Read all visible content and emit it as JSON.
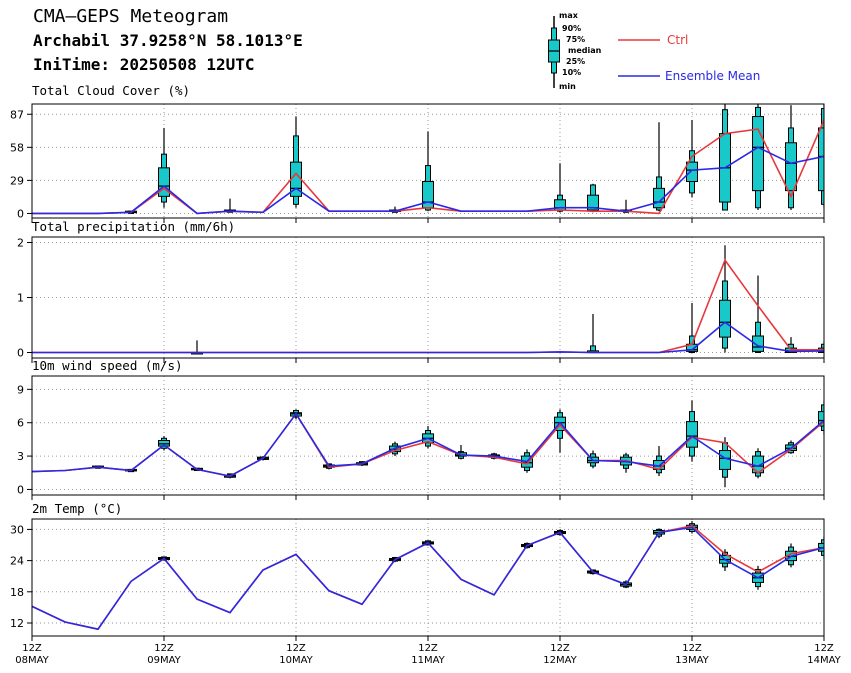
{
  "header": {
    "title": "CMA—GEPS Meteogram",
    "location": "Archabil 37.9258°N 58.1013°E",
    "init_time": "IniTime: 20250508 12UTC"
  },
  "legend": {
    "box_labels": [
      "max",
      "90%",
      "75%",
      "median",
      "25%",
      "10%",
      "min"
    ],
    "lines": [
      {
        "name": "Ctrl",
        "color": "#e8383c"
      },
      {
        "name": "Ensemble Mean",
        "color": "#2a2ae6"
      }
    ]
  },
  "colors": {
    "box_fill": "#19c8c8",
    "ctrl": "#e8383c",
    "mean": "#2a2ae6",
    "grid": "#9a9a9a"
  },
  "chart_data": [
    {
      "type": "box",
      "title": "Total Cloud Cover (%)",
      "ylim": [
        -4,
        96
      ],
      "yticks": [
        0,
        29,
        58,
        87
      ],
      "ctrl": [
        0,
        0,
        0,
        1,
        22,
        0,
        2,
        1,
        35,
        2,
        2,
        2,
        5,
        2,
        2,
        2,
        3,
        2,
        2,
        0,
        50,
        70,
        74,
        15,
        82
      ],
      "mean": [
        0,
        0,
        0,
        1,
        24,
        0,
        2,
        1,
        22,
        2,
        2,
        2,
        10,
        2,
        2,
        2,
        5,
        5,
        2,
        10,
        38,
        40,
        58,
        44,
        50
      ],
      "boxes": [
        {
          "i": 3,
          "min": 0,
          "p10": 0,
          "p25": 1,
          "med": 1,
          "p75": 2,
          "p90": 2,
          "max": 2
        },
        {
          "i": 4,
          "min": 5,
          "p10": 10,
          "p25": 15,
          "med": 24,
          "p75": 40,
          "p90": 52,
          "max": 75
        },
        {
          "i": 6,
          "min": 1,
          "p10": 1,
          "p25": 2,
          "med": 2,
          "p75": 3,
          "p90": 3,
          "max": 13
        },
        {
          "i": 8,
          "min": 5,
          "p10": 8,
          "p25": 15,
          "med": 22,
          "p75": 45,
          "p90": 68,
          "max": 85
        },
        {
          "i": 11,
          "min": 1,
          "p10": 1,
          "p25": 2,
          "med": 2,
          "p75": 3,
          "p90": 3,
          "max": 6
        },
        {
          "i": 12,
          "min": 2,
          "p10": 3,
          "p25": 5,
          "med": 10,
          "p75": 28,
          "p90": 42,
          "max": 72
        },
        {
          "i": 16,
          "min": 1,
          "p10": 2,
          "p25": 3,
          "med": 5,
          "p75": 12,
          "p90": 16,
          "max": 44
        },
        {
          "i": 17,
          "min": 1,
          "p10": 2,
          "p25": 3,
          "med": 5,
          "p75": 16,
          "p90": 25,
          "max": 26
        },
        {
          "i": 18,
          "min": 1,
          "p10": 1,
          "p25": 2,
          "med": 2,
          "p75": 3,
          "p90": 3,
          "max": 12
        },
        {
          "i": 19,
          "min": 2,
          "p10": 3,
          "p25": 5,
          "med": 10,
          "p75": 22,
          "p90": 32,
          "max": 80
        },
        {
          "i": 20,
          "min": 14,
          "p10": 18,
          "p25": 28,
          "med": 38,
          "p75": 45,
          "p90": 55,
          "max": 82
        },
        {
          "i": 21,
          "min": 3,
          "p10": 3,
          "p25": 10,
          "med": 40,
          "p75": 70,
          "p90": 91,
          "max": 96
        },
        {
          "i": 22,
          "min": 3,
          "p10": 5,
          "p25": 20,
          "med": 58,
          "p75": 85,
          "p90": 93,
          "max": 97
        },
        {
          "i": 23,
          "min": 3,
          "p10": 5,
          "p25": 20,
          "med": 44,
          "p75": 62,
          "p90": 75,
          "max": 95
        },
        {
          "i": 24,
          "min": 5,
          "p10": 8,
          "p25": 20,
          "med": 50,
          "p75": 75,
          "p90": 92,
          "max": 98
        }
      ]
    },
    {
      "type": "box",
      "title": "Total precipitation (mm/6h)",
      "ylim": [
        -0.1,
        2.1
      ],
      "yticks": [
        0,
        1,
        2
      ],
      "ctrl": [
        0,
        0,
        0,
        0,
        0,
        0,
        0,
        0,
        0,
        0,
        0,
        0,
        0,
        0,
        0,
        0,
        0.01,
        0,
        0,
        0,
        0.15,
        1.68,
        0.85,
        0.05,
        0.05
      ],
      "mean": [
        0,
        0,
        0,
        0,
        0,
        0,
        0,
        0,
        0,
        0,
        0,
        0,
        0,
        0,
        0,
        0,
        0.01,
        0,
        0,
        0,
        0.05,
        0.55,
        0.12,
        0.02,
        0.03
      ],
      "boxes": [
        {
          "i": 5,
          "min": 0,
          "p10": 0,
          "p25": 0,
          "med": 0,
          "p75": 0,
          "p90": 0,
          "max": 0.22
        },
        {
          "i": 17,
          "min": 0,
          "p10": 0,
          "p25": 0,
          "med": 0,
          "p75": 0.03,
          "p90": 0.12,
          "max": 0.7
        },
        {
          "i": 20,
          "min": 0,
          "p10": 0,
          "p25": 0.02,
          "med": 0.05,
          "p75": 0.15,
          "p90": 0.3,
          "max": 0.9
        },
        {
          "i": 21,
          "min": 0,
          "p10": 0.08,
          "p25": 0.28,
          "med": 0.55,
          "p75": 0.95,
          "p90": 1.3,
          "max": 1.95
        },
        {
          "i": 22,
          "min": 0,
          "p10": 0,
          "p25": 0.02,
          "med": 0.1,
          "p75": 0.3,
          "p90": 0.55,
          "max": 1.4
        },
        {
          "i": 23,
          "min": 0,
          "p10": 0,
          "p25": 0,
          "med": 0.02,
          "p75": 0.08,
          "p90": 0.15,
          "max": 0.28
        },
        {
          "i": 24,
          "min": 0,
          "p10": 0,
          "p25": 0,
          "med": 0.02,
          "p75": 0.08,
          "p90": 0.15,
          "max": 0.2
        }
      ]
    },
    {
      "type": "box",
      "title": "10m wind speed (m/s)",
      "ylim": [
        -0.5,
        10.2
      ],
      "yticks": [
        0,
        3,
        6,
        9
      ],
      "ctrl": [
        1.6,
        1.7,
        2.0,
        1.7,
        4.0,
        1.8,
        1.2,
        2.8,
        6.8,
        2.0,
        2.3,
        3.5,
        4.3,
        3.1,
        2.9,
        2.3,
        5.8,
        2.6,
        2.6,
        1.8,
        4.7,
        4.2,
        1.5,
        3.6,
        6.1
      ],
      "mean": [
        1.6,
        1.7,
        2.0,
        1.7,
        4.0,
        1.8,
        1.2,
        2.8,
        6.8,
        2.1,
        2.3,
        3.7,
        4.6,
        3.1,
        3.0,
        2.5,
        6.0,
        2.6,
        2.5,
        2.1,
        4.8,
        2.8,
        2.1,
        3.7,
        6.2
      ],
      "boxes": [
        {
          "i": 2,
          "min": 1.9,
          "p10": 1.9,
          "p25": 2.0,
          "med": 2.0,
          "p75": 2.1,
          "p90": 2.1,
          "max": 2.1
        },
        {
          "i": 3,
          "min": 1.6,
          "p10": 1.6,
          "p25": 1.7,
          "med": 1.7,
          "p75": 1.8,
          "p90": 1.8,
          "max": 1.8
        },
        {
          "i": 4,
          "min": 3.5,
          "p10": 3.7,
          "p25": 3.9,
          "med": 4.1,
          "p75": 4.4,
          "p90": 4.6,
          "max": 4.8
        },
        {
          "i": 5,
          "min": 1.7,
          "p10": 1.7,
          "p25": 1.8,
          "med": 1.8,
          "p75": 1.9,
          "p90": 1.9,
          "max": 1.9
        },
        {
          "i": 6,
          "min": 1.0,
          "p10": 1.1,
          "p25": 1.1,
          "med": 1.2,
          "p75": 1.3,
          "p90": 1.4,
          "max": 1.4
        },
        {
          "i": 7,
          "min": 2.6,
          "p10": 2.7,
          "p25": 2.7,
          "med": 2.8,
          "p75": 2.9,
          "p90": 2.9,
          "max": 3.0
        },
        {
          "i": 8,
          "min": 6.3,
          "p10": 6.5,
          "p25": 6.6,
          "med": 6.8,
          "p75": 6.9,
          "p90": 7.1,
          "max": 7.2
        },
        {
          "i": 9,
          "min": 1.8,
          "p10": 1.9,
          "p25": 2.0,
          "med": 2.1,
          "p75": 2.2,
          "p90": 2.3,
          "max": 2.3
        },
        {
          "i": 10,
          "min": 2.1,
          "p10": 2.2,
          "p25": 2.2,
          "med": 2.3,
          "p75": 2.4,
          "p90": 2.5,
          "max": 2.5
        },
        {
          "i": 11,
          "min": 3.0,
          "p10": 3.2,
          "p25": 3.4,
          "med": 3.6,
          "p75": 3.9,
          "p90": 4.1,
          "max": 4.3
        },
        {
          "i": 12,
          "min": 3.7,
          "p10": 3.9,
          "p25": 4.2,
          "med": 4.6,
          "p75": 5.0,
          "p90": 5.3,
          "max": 5.7
        },
        {
          "i": 13,
          "min": 2.7,
          "p10": 2.8,
          "p25": 3.0,
          "med": 3.1,
          "p75": 3.3,
          "p90": 3.4,
          "max": 4.0
        },
        {
          "i": 14,
          "min": 2.7,
          "p10": 2.8,
          "p25": 2.9,
          "med": 3.0,
          "p75": 3.1,
          "p90": 3.2,
          "max": 3.3
        },
        {
          "i": 15,
          "min": 1.5,
          "p10": 1.7,
          "p25": 2.0,
          "med": 2.4,
          "p75": 3.0,
          "p90": 3.3,
          "max": 3.6
        },
        {
          "i": 16,
          "min": 3.3,
          "p10": 4.6,
          "p25": 5.3,
          "med": 6.0,
          "p75": 6.5,
          "p90": 6.9,
          "max": 7.2
        },
        {
          "i": 17,
          "min": 1.9,
          "p10": 2.1,
          "p25": 2.4,
          "med": 2.6,
          "p75": 2.9,
          "p90": 3.2,
          "max": 3.5
        },
        {
          "i": 18,
          "min": 1.5,
          "p10": 1.9,
          "p25": 2.2,
          "med": 2.5,
          "p75": 2.9,
          "p90": 3.1,
          "max": 3.3
        },
        {
          "i": 19,
          "min": 1.2,
          "p10": 1.5,
          "p25": 1.8,
          "med": 2.1,
          "p75": 2.6,
          "p90": 3.0,
          "max": 3.9
        },
        {
          "i": 20,
          "min": 2.5,
          "p10": 3.0,
          "p25": 3.8,
          "med": 4.8,
          "p75": 6.1,
          "p90": 7.0,
          "max": 8.0
        },
        {
          "i": 21,
          "min": 0.2,
          "p10": 1.1,
          "p25": 1.8,
          "med": 2.8,
          "p75": 3.5,
          "p90": 4.2,
          "max": 4.7
        },
        {
          "i": 22,
          "min": 1.0,
          "p10": 1.2,
          "p25": 1.5,
          "med": 2.1,
          "p75": 3.0,
          "p90": 3.4,
          "max": 3.7
        },
        {
          "i": 23,
          "min": 3.2,
          "p10": 3.3,
          "p25": 3.5,
          "med": 3.7,
          "p75": 4.0,
          "p90": 4.2,
          "max": 4.4
        },
        {
          "i": 24,
          "min": 4.9,
          "p10": 5.3,
          "p25": 5.7,
          "med": 6.2,
          "p75": 7.0,
          "p90": 7.6,
          "max": 8.0
        }
      ]
    },
    {
      "type": "box",
      "title": "2m Temp (°C)",
      "ylim": [
        9.5,
        32
      ],
      "yticks": [
        12,
        18,
        24,
        30
      ],
      "ctrl": [
        15.2,
        12.2,
        10.8,
        20.0,
        24.4,
        16.6,
        14.0,
        22.2,
        25.2,
        18.2,
        15.6,
        24.2,
        27.4,
        20.4,
        17.4,
        26.9,
        29.4,
        21.8,
        19.4,
        29.4,
        30.7,
        25.3,
        21.8,
        25.3,
        26.5
      ],
      "mean": [
        15.2,
        12.2,
        10.8,
        20.0,
        24.4,
        16.6,
        14.0,
        22.2,
        25.2,
        18.2,
        15.6,
        24.2,
        27.4,
        20.4,
        17.4,
        26.9,
        29.4,
        21.8,
        19.4,
        29.4,
        30.4,
        24.2,
        20.7,
        24.8,
        26.5
      ],
      "boxes": [
        {
          "i": 4,
          "min": 24.0,
          "p10": 24.1,
          "p25": 24.2,
          "med": 24.4,
          "p75": 24.6,
          "p90": 24.7,
          "max": 24.8
        },
        {
          "i": 11,
          "min": 23.7,
          "p10": 23.9,
          "p25": 24.0,
          "med": 24.2,
          "p75": 24.4,
          "p90": 24.6,
          "max": 24.7
        },
        {
          "i": 12,
          "min": 26.9,
          "p10": 27.0,
          "p25": 27.2,
          "med": 27.4,
          "p75": 27.6,
          "p90": 27.8,
          "max": 27.9
        },
        {
          "i": 15,
          "min": 26.3,
          "p10": 26.5,
          "p25": 26.7,
          "med": 26.9,
          "p75": 27.1,
          "p90": 27.3,
          "max": 27.5
        },
        {
          "i": 16,
          "min": 28.8,
          "p10": 29.0,
          "p25": 29.2,
          "med": 29.4,
          "p75": 29.6,
          "p90": 29.8,
          "max": 30.0
        },
        {
          "i": 17,
          "min": 21.3,
          "p10": 21.5,
          "p25": 21.6,
          "med": 21.8,
          "p75": 22.0,
          "p90": 22.2,
          "max": 22.3
        },
        {
          "i": 18,
          "min": 18.7,
          "p10": 18.9,
          "p25": 19.1,
          "med": 19.4,
          "p75": 19.7,
          "p90": 19.9,
          "max": 20.2
        },
        {
          "i": 19,
          "min": 28.3,
          "p10": 28.7,
          "p25": 29.1,
          "med": 29.4,
          "p75": 29.8,
          "p90": 30.0,
          "max": 30.2
        },
        {
          "i": 20,
          "min": 29.2,
          "p10": 29.6,
          "p25": 30.0,
          "med": 30.4,
          "p75": 30.8,
          "p90": 31.1,
          "max": 31.6
        },
        {
          "i": 21,
          "min": 22.0,
          "p10": 22.8,
          "p25": 23.5,
          "med": 24.2,
          "p75": 25.0,
          "p90": 25.6,
          "max": 26.2
        },
        {
          "i": 22,
          "min": 18.4,
          "p10": 19.0,
          "p25": 19.8,
          "med": 20.7,
          "p75": 21.6,
          "p90": 22.3,
          "max": 23.0
        },
        {
          "i": 23,
          "min": 22.7,
          "p10": 23.2,
          "p25": 24.0,
          "med": 24.8,
          "p75": 25.8,
          "p90": 26.6,
          "max": 27.3
        },
        {
          "i": 24,
          "min": 24.3,
          "p10": 25.0,
          "p25": 25.8,
          "med": 26.5,
          "p75": 27.3,
          "p90": 28.0,
          "max": 28.6
        }
      ]
    }
  ],
  "x_axis": {
    "count": 25,
    "ticks": [
      {
        "i": 0,
        "top": "12Z",
        "bottom": "08MAY"
      },
      {
        "i": 4,
        "top": "12Z",
        "bottom": "09MAY"
      },
      {
        "i": 8,
        "top": "12Z",
        "bottom": "10MAY"
      },
      {
        "i": 12,
        "top": "12Z",
        "bottom": "11MAY"
      },
      {
        "i": 16,
        "top": "12Z",
        "bottom": "12MAY"
      },
      {
        "i": 20,
        "top": "12Z",
        "bottom": "13MAY"
      },
      {
        "i": 24,
        "top": "12Z",
        "bottom": "14MAY"
      }
    ]
  }
}
